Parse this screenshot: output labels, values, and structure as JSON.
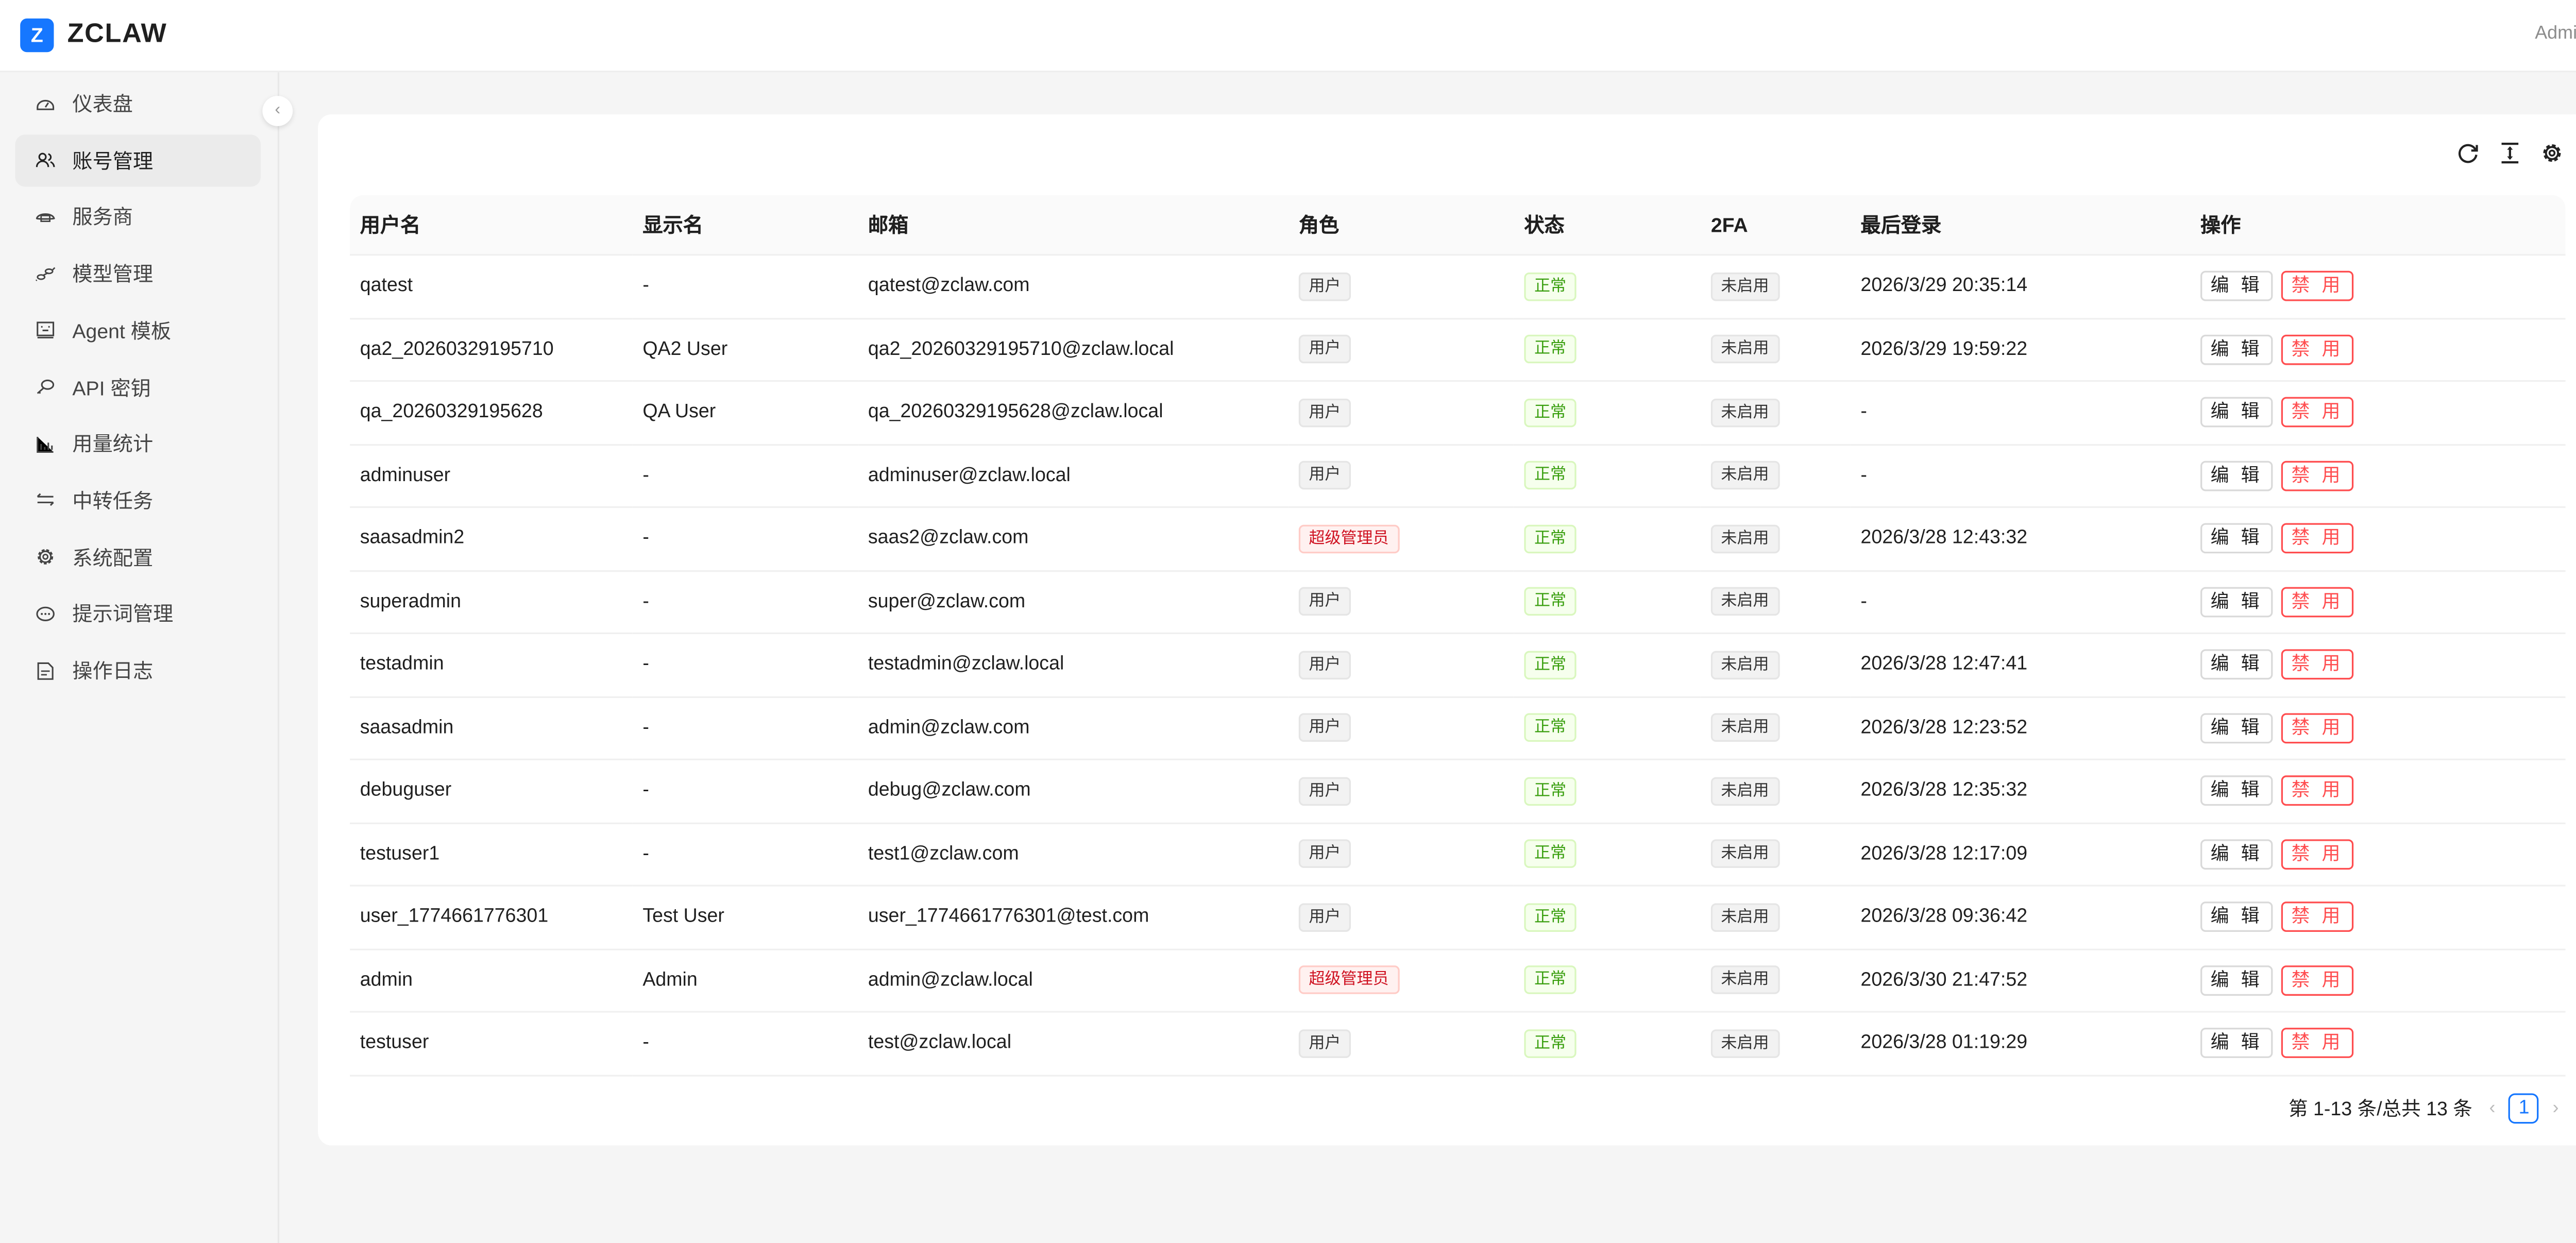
{
  "header": {
    "logo_letter": "Z",
    "brand": "ZCLAW",
    "user": "Admin"
  },
  "sidebar": {
    "items": [
      {
        "label": "仪表盘",
        "icon": "dashboard-icon"
      },
      {
        "label": "账号管理",
        "icon": "users-icon",
        "active": true
      },
      {
        "label": "服务商",
        "icon": "cloud-icon"
      },
      {
        "label": "模型管理",
        "icon": "api-link-icon"
      },
      {
        "label": "Agent 模板",
        "icon": "robot-icon"
      },
      {
        "label": "API 密钥",
        "icon": "key-icon"
      },
      {
        "label": "用量统计",
        "icon": "bar-chart-icon"
      },
      {
        "label": "中转任务",
        "icon": "swap-icon"
      },
      {
        "label": "系统配置",
        "icon": "gear-icon"
      },
      {
        "label": "提示词管理",
        "icon": "message-icon"
      },
      {
        "label": "操作日志",
        "icon": "file-icon"
      }
    ],
    "collapse": "‹"
  },
  "table": {
    "columns": [
      "用户名",
      "显示名",
      "邮箱",
      "角色",
      "状态",
      "2FA",
      "最后登录",
      "操作"
    ],
    "actions": {
      "edit": "编 辑",
      "disable": "禁 用"
    },
    "rows": [
      {
        "username": "qatest",
        "display": "-",
        "email": "qatest@zclaw.com",
        "role": "用户",
        "status": "正常",
        "twofa": "未启用",
        "last": "2026/3/29 20:35:14"
      },
      {
        "username": "qa2_20260329195710",
        "display": "QA2 User",
        "email": "qa2_20260329195710@zclaw.local",
        "role": "用户",
        "status": "正常",
        "twofa": "未启用",
        "last": "2026/3/29 19:59:22"
      },
      {
        "username": "qa_20260329195628",
        "display": "QA User",
        "email": "qa_20260329195628@zclaw.local",
        "role": "用户",
        "status": "正常",
        "twofa": "未启用",
        "last": "-"
      },
      {
        "username": "adminuser",
        "display": "-",
        "email": "adminuser@zclaw.local",
        "role": "用户",
        "status": "正常",
        "twofa": "未启用",
        "last": "-"
      },
      {
        "username": "saasadmin2",
        "display": "-",
        "email": "saas2@zclaw.com",
        "role": "超级管理员",
        "status": "正常",
        "twofa": "未启用",
        "last": "2026/3/28 12:43:32"
      },
      {
        "username": "superadmin",
        "display": "-",
        "email": "super@zclaw.com",
        "role": "用户",
        "status": "正常",
        "twofa": "未启用",
        "last": "-"
      },
      {
        "username": "testadmin",
        "display": "-",
        "email": "testadmin@zclaw.local",
        "role": "用户",
        "status": "正常",
        "twofa": "未启用",
        "last": "2026/3/28 12:47:41"
      },
      {
        "username": "saasadmin",
        "display": "-",
        "email": "admin@zclaw.com",
        "role": "用户",
        "status": "正常",
        "twofa": "未启用",
        "last": "2026/3/28 12:23:52"
      },
      {
        "username": "debuguser",
        "display": "-",
        "email": "debug@zclaw.com",
        "role": "用户",
        "status": "正常",
        "twofa": "未启用",
        "last": "2026/3/28 12:35:32"
      },
      {
        "username": "testuser1",
        "display": "-",
        "email": "test1@zclaw.com",
        "role": "用户",
        "status": "正常",
        "twofa": "未启用",
        "last": "2026/3/28 12:17:09"
      },
      {
        "username": "user_1774661776301",
        "display": "Test User",
        "email": "user_1774661776301@test.com",
        "role": "用户",
        "status": "正常",
        "twofa": "未启用",
        "last": "2026/3/28 09:36:42"
      },
      {
        "username": "admin",
        "display": "Admin",
        "email": "admin@zclaw.local",
        "role": "超级管理员",
        "status": "正常",
        "twofa": "未启用",
        "last": "2026/3/30 21:47:52"
      },
      {
        "username": "testuser",
        "display": "-",
        "email": "test@zclaw.local",
        "role": "用户",
        "status": "正常",
        "twofa": "未启用",
        "last": "2026/3/28 01:19:29"
      }
    ]
  },
  "pagination": {
    "summary": "第 1-13 条/总共 13 条",
    "current": "1",
    "prev": "‹",
    "next": "›"
  },
  "colors": {
    "primary": "#1677ff",
    "danger": "#ff4d4f",
    "success": "#389e0d"
  }
}
